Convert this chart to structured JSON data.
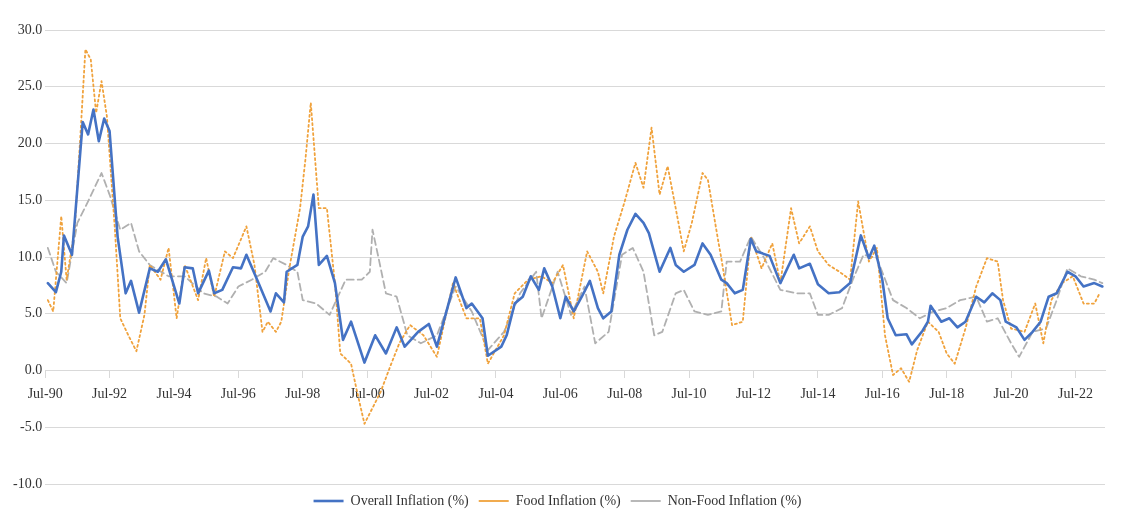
{
  "chart_data": {
    "type": "line",
    "xlim": [
      "1990-07",
      "2023-06"
    ],
    "xticks": [
      {
        "value": "1990-07",
        "label": "Jul-90"
      },
      {
        "value": "1992-07",
        "label": "Jul-92"
      },
      {
        "value": "1994-07",
        "label": "Jul-94"
      },
      {
        "value": "1996-07",
        "label": "Jul-96"
      },
      {
        "value": "1998-07",
        "label": "Jul-98"
      },
      {
        "value": "2000-07",
        "label": "Jul-00"
      },
      {
        "value": "2002-07",
        "label": "Jul-02"
      },
      {
        "value": "2004-07",
        "label": "Jul-04"
      },
      {
        "value": "2006-07",
        "label": "Jul-06"
      },
      {
        "value": "2008-07",
        "label": "Jul-08"
      },
      {
        "value": "2010-07",
        "label": "Jul-10"
      },
      {
        "value": "2012-07",
        "label": "Jul-12"
      },
      {
        "value": "2014-07",
        "label": "Jul-14"
      },
      {
        "value": "2016-07",
        "label": "Jul-16"
      },
      {
        "value": "2018-07",
        "label": "Jul-18"
      },
      {
        "value": "2020-07",
        "label": "Jul-20"
      },
      {
        "value": "2022-07",
        "label": "Jul-22"
      }
    ],
    "ylim": [
      -10,
      30
    ],
    "yticks": [
      {
        "value": -10,
        "label": "-10.0"
      },
      {
        "value": -5,
        "label": "-5.0"
      },
      {
        "value": 0,
        "label": "0.0"
      },
      {
        "value": 5,
        "label": "5.0"
      },
      {
        "value": 10,
        "label": "10.0"
      },
      {
        "value": 15,
        "label": "15.0"
      },
      {
        "value": 20,
        "label": "20.0"
      },
      {
        "value": 25,
        "label": "25.0"
      },
      {
        "value": 30,
        "label": "30.0"
      }
    ],
    "grid": "y",
    "legend": "bottom",
    "marker": "none",
    "series": [
      {
        "name": "Overall Inflation (%)",
        "color": "#4472c4",
        "line_style": "solid",
        "x": [
          "1990-08",
          "1990-11",
          "1991-01",
          "1991-02",
          "1991-05",
          "1991-09",
          "1991-11",
          "1992-01",
          "1992-03",
          "1992-05",
          "1992-07",
          "1992-10",
          "1993-01",
          "1993-03",
          "1993-06",
          "1993-10",
          "1994-01",
          "1994-04",
          "1994-09",
          "1994-11",
          "1995-02",
          "1995-04",
          "1995-08",
          "1995-10",
          "1996-01",
          "1996-05",
          "1996-08",
          "1996-10",
          "1997-02",
          "1997-07",
          "1997-09",
          "1997-12",
          "1998-01",
          "1998-05",
          "1998-07",
          "1998-09",
          "1998-11",
          "1999-01",
          "1999-04",
          "1999-07",
          "1999-10",
          "2000-01",
          "2000-06",
          "2000-10",
          "2001-02",
          "2001-06",
          "2001-09",
          "2002-02",
          "2002-06",
          "2002-09",
          "2003-04",
          "2003-08",
          "2003-10",
          "2004-02",
          "2004-04",
          "2004-09",
          "2004-11",
          "2005-02",
          "2005-05",
          "2005-08",
          "2005-11",
          "2006-01",
          "2006-04",
          "2006-07",
          "2006-09",
          "2006-12",
          "2007-03",
          "2007-06",
          "2007-09",
          "2007-11",
          "2008-02",
          "2008-05",
          "2008-08",
          "2008-11",
          "2009-02",
          "2009-04",
          "2009-08",
          "2009-12",
          "2010-02",
          "2010-05",
          "2010-09",
          "2010-12",
          "2011-03",
          "2011-07",
          "2011-09",
          "2011-12",
          "2012-03",
          "2012-06",
          "2012-08",
          "2013-01",
          "2013-05",
          "2013-10",
          "2013-12",
          "2014-04",
          "2014-07",
          "2014-11",
          "2015-03",
          "2015-07",
          "2015-11",
          "2016-02",
          "2016-04",
          "2016-07",
          "2016-09",
          "2016-12",
          "2017-04",
          "2017-06",
          "2017-10",
          "2017-12",
          "2018-01",
          "2018-05",
          "2018-08",
          "2018-11",
          "2019-02",
          "2019-06",
          "2019-09",
          "2019-12",
          "2020-03",
          "2020-05",
          "2020-09",
          "2020-12",
          "2021-03",
          "2021-06",
          "2021-09",
          "2021-12",
          "2022-04",
          "2022-07",
          "2022-10",
          "2023-02",
          "2023-05"
        ],
        "values": [
          7.7,
          6.9,
          8.7,
          11.9,
          10.2,
          21.9,
          20.8,
          23.0,
          20.2,
          22.2,
          21.1,
          11.8,
          6.8,
          7.9,
          5.1,
          9.0,
          8.7,
          9.8,
          5.9,
          9.1,
          9.0,
          6.8,
          8.8,
          6.8,
          7.1,
          9.1,
          9.0,
          10.2,
          8.0,
          5.2,
          6.8,
          6.0,
          8.7,
          9.3,
          11.8,
          12.7,
          15.5,
          9.3,
          10.1,
          7.7,
          2.7,
          4.3,
          0.7,
          3.1,
          1.5,
          3.8,
          2.1,
          3.4,
          4.1,
          2.1,
          8.2,
          5.5,
          5.9,
          4.6,
          1.3,
          2.1,
          3.1,
          5.9,
          6.5,
          8.3,
          7.1,
          9.0,
          7.4,
          4.6,
          6.5,
          5.2,
          6.5,
          7.9,
          5.5,
          4.6,
          5.2,
          10.2,
          12.4,
          13.8,
          13.0,
          12.1,
          8.7,
          10.8,
          9.3,
          8.7,
          9.3,
          11.2,
          10.2,
          8.0,
          7.7,
          6.8,
          7.1,
          11.6,
          10.5,
          10.1,
          7.7,
          10.2,
          9.0,
          9.4,
          7.6,
          6.8,
          6.9,
          7.7,
          11.9,
          9.9,
          11.0,
          8.0,
          4.6,
          3.1,
          3.2,
          2.3,
          3.5,
          4.3,
          5.7,
          4.3,
          4.6,
          3.8,
          4.3,
          6.5,
          6.0,
          6.8,
          6.2,
          4.3,
          3.8,
          2.7,
          3.4,
          4.3,
          6.5,
          6.8,
          8.7,
          8.3,
          7.4,
          7.7,
          7.4
        ]
      },
      {
        "name": "Food Inflation (%)",
        "color": "#f0a23c",
        "line_style": "dotted",
        "x": [
          "1990-08",
          "1990-10",
          "1991-01",
          "1991-03",
          "1991-06",
          "1991-08",
          "1991-10",
          "1991-12",
          "1992-02",
          "1992-04",
          "1992-06",
          "1992-09",
          "1992-11",
          "1993-02",
          "1993-05",
          "1993-08",
          "1993-10",
          "1994-02",
          "1994-05",
          "1994-08",
          "1994-11",
          "1995-04",
          "1995-07",
          "1995-10",
          "1996-02",
          "1996-05",
          "1996-10",
          "1997-01",
          "1997-04",
          "1997-06",
          "1997-09",
          "1997-11",
          "1998-02",
          "1998-06",
          "1998-08",
          "1998-10",
          "1999-01",
          "1999-04",
          "1999-07",
          "1999-09",
          "2000-01",
          "2000-03",
          "2000-06",
          "2000-12",
          "2001-04",
          "2001-07",
          "2001-11",
          "2002-04",
          "2002-09",
          "2003-03",
          "2003-08",
          "2004-01",
          "2004-04",
          "2004-10",
          "2005-02",
          "2005-07",
          "2005-12",
          "2006-04",
          "2006-08",
          "2006-12",
          "2007-05",
          "2007-09",
          "2007-11",
          "2008-03",
          "2008-07",
          "2008-11",
          "2009-02",
          "2009-05",
          "2009-08",
          "2009-11",
          "2010-02",
          "2010-05",
          "2010-08",
          "2010-12",
          "2011-02",
          "2011-06",
          "2011-07",
          "2011-11",
          "2012-03",
          "2012-06",
          "2012-10",
          "2013-02",
          "2013-05",
          "2013-09",
          "2013-12",
          "2014-04",
          "2014-07",
          "2014-11",
          "2015-03",
          "2015-07",
          "2015-10",
          "2016-02",
          "2016-05",
          "2016-08",
          "2016-11",
          "2017-02",
          "2017-05",
          "2017-08",
          "2017-12",
          "2018-04",
          "2018-07",
          "2018-10",
          "2019-02",
          "2019-06",
          "2019-10",
          "2020-02",
          "2020-04",
          "2020-07",
          "2020-12",
          "2021-04",
          "2021-07",
          "2021-10",
          "2022-02",
          "2022-06",
          "2022-10",
          "2023-02",
          "2023-04"
        ],
        "values": [
          6.2,
          5.2,
          13.6,
          8.0,
          12.4,
          20.2,
          28.3,
          27.4,
          22.7,
          25.5,
          22.4,
          12.4,
          4.6,
          3.1,
          1.7,
          4.9,
          9.3,
          8.0,
          10.8,
          4.6,
          9.3,
          6.2,
          9.9,
          6.5,
          10.5,
          9.9,
          12.7,
          9.3,
          3.4,
          4.3,
          3.4,
          4.3,
          9.0,
          14.3,
          18.6,
          23.6,
          14.3,
          14.3,
          7.7,
          1.5,
          0.6,
          -1.6,
          -4.7,
          -1.9,
          0.6,
          2.4,
          4.0,
          3.1,
          1.2,
          7.7,
          4.6,
          4.6,
          0.6,
          3.1,
          6.8,
          8.0,
          8.3,
          7.7,
          9.3,
          4.6,
          10.5,
          8.7,
          6.8,
          11.8,
          14.9,
          18.3,
          16.1,
          21.4,
          15.5,
          18.0,
          14.3,
          10.5,
          13.0,
          17.4,
          16.8,
          11.2,
          9.9,
          4.0,
          4.3,
          11.8,
          9.0,
          11.2,
          7.7,
          14.3,
          11.2,
          12.7,
          10.5,
          9.3,
          8.7,
          8.0,
          14.9,
          9.6,
          10.8,
          3.1,
          -0.4,
          0.2,
          -1.0,
          1.8,
          4.3,
          3.4,
          1.5,
          0.6,
          3.7,
          7.4,
          9.9,
          9.6,
          6.2,
          3.7,
          3.4,
          5.9,
          2.4,
          6.2,
          7.7,
          8.3,
          5.9,
          5.9,
          6.8
        ]
      },
      {
        "name": "Non-Food Inflation (%)",
        "color": "#b0b0b0",
        "line_style": "dashed",
        "x": [
          "1990-08",
          "1990-11",
          "1991-03",
          "1991-07",
          "1991-11",
          "1992-04",
          "1992-07",
          "1992-11",
          "1993-03",
          "1993-06",
          "1993-10",
          "1994-05",
          "1994-11",
          "1995-06",
          "1995-11",
          "1996-03",
          "1996-07",
          "1996-12",
          "1997-05",
          "1997-08",
          "1998-01",
          "1998-05",
          "1998-07",
          "1998-12",
          "1999-05",
          "1999-11",
          "2000-05",
          "2000-08",
          "2000-09",
          "2000-11",
          "2001-02",
          "2001-06",
          "2001-10",
          "2002-03",
          "2002-09",
          "2003-04",
          "2003-10",
          "2004-04",
          "2004-10",
          "2005-04",
          "2005-10",
          "2005-12",
          "2006-06",
          "2006-11",
          "2007-04",
          "2007-08",
          "2008-01",
          "2008-06",
          "2008-10",
          "2009-02",
          "2009-06",
          "2009-09",
          "2010-02",
          "2010-05",
          "2010-09",
          "2011-02",
          "2011-07",
          "2011-09",
          "2012-02",
          "2012-06",
          "2012-11",
          "2013-05",
          "2013-11",
          "2014-04",
          "2014-07",
          "2014-11",
          "2015-04",
          "2015-08",
          "2015-12",
          "2016-05",
          "2016-11",
          "2017-04",
          "2017-09",
          "2018-02",
          "2018-07",
          "2018-12",
          "2019-06",
          "2019-10",
          "2020-02",
          "2020-07",
          "2020-10",
          "2021-03",
          "2021-08",
          "2021-12",
          "2022-04",
          "2022-09",
          "2023-02",
          "2023-05"
        ],
        "values": [
          10.8,
          8.7,
          7.7,
          13.0,
          14.9,
          17.4,
          15.5,
          12.4,
          13.0,
          10.5,
          9.3,
          8.3,
          8.3,
          6.8,
          6.5,
          5.9,
          7.4,
          8.0,
          8.7,
          9.9,
          9.3,
          8.7,
          6.2,
          5.9,
          4.9,
          8.0,
          8.0,
          8.7,
          12.4,
          10.2,
          6.8,
          6.5,
          3.1,
          2.4,
          3.1,
          7.4,
          5.2,
          1.8,
          3.4,
          6.8,
          8.7,
          4.6,
          8.7,
          4.9,
          7.4,
          2.4,
          3.4,
          10.2,
          10.8,
          8.7,
          3.1,
          3.4,
          6.8,
          7.1,
          5.2,
          4.9,
          5.2,
          9.6,
          9.6,
          11.8,
          9.9,
          7.1,
          6.8,
          6.8,
          4.9,
          4.9,
          5.5,
          8.0,
          10.2,
          9.9,
          6.2,
          5.5,
          4.6,
          5.2,
          5.5,
          6.2,
          6.5,
          4.3,
          4.6,
          2.4,
          1.2,
          3.4,
          3.7,
          6.2,
          9.0,
          8.3,
          8.0,
          7.7
        ]
      }
    ]
  }
}
